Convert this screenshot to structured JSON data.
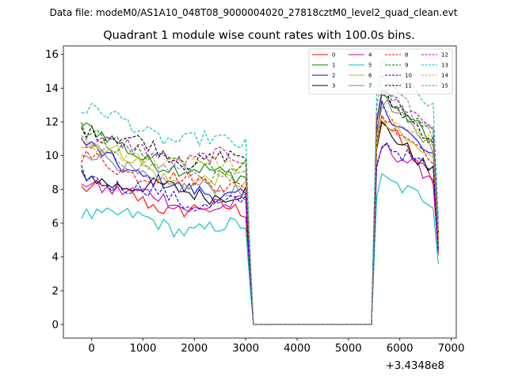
{
  "chart_data": {
    "type": "line",
    "suptitle": "Data file: modeM0/AS1A10_048T08_9000004020_27818cztM0_level2_quad_clean.evt",
    "title": "Quadrant 1 module wise count rates with 100.0s bins.",
    "xlabel": "",
    "ylabel": "",
    "x_offset_label": "+3.4348e8",
    "xlim": [
      -550,
      7100
    ],
    "ylim": [
      -0.8,
      16.5
    ],
    "xticks": [
      0,
      1000,
      2000,
      3000,
      4000,
      5000,
      6000,
      7000
    ],
    "xtick_labels": [
      "0",
      "1000",
      "2000",
      "3000",
      "4000",
      "5000",
      "6000",
      "7000"
    ],
    "yticks": [
      0,
      2,
      4,
      6,
      8,
      10,
      12,
      14,
      16
    ],
    "ytick_labels": [
      "0",
      "2",
      "4",
      "6",
      "8",
      "10",
      "12",
      "14",
      "16"
    ],
    "grid": false,
    "legend_location": "top-right",
    "legend_columns": 4,
    "x_active_segment_1": [
      -200,
      3000
    ],
    "x_gap": [
      3150,
      5450
    ],
    "x_active_segment_2": [
      5550,
      6750
    ],
    "x_step": 100,
    "series": [
      {
        "name": "0",
        "color": "#ff0000",
        "dashed": false,
        "level_start": 8.2,
        "level_mid": 6.8,
        "peak_2": 12.2,
        "level_end": 8.3
      },
      {
        "name": "1",
        "color": "#008000",
        "dashed": false,
        "level_start": 11.6,
        "level_mid": 9.0,
        "peak_2": 13.6,
        "level_end": 10.8
      },
      {
        "name": "2",
        "color": "#0000ff",
        "dashed": false,
        "level_start": 10.6,
        "level_mid": 7.8,
        "peak_2": 12.9,
        "level_end": 9.6
      },
      {
        "name": "3",
        "color": "#000000",
        "dashed": false,
        "level_start": 8.8,
        "level_mid": 7.8,
        "peak_2": 11.8,
        "level_end": 8.8
      },
      {
        "name": "4",
        "color": "#bf00bf",
        "dashed": false,
        "level_start": 8.6,
        "level_mid": 7.0,
        "peak_2": 10.6,
        "level_end": 8.6
      },
      {
        "name": "5",
        "color": "#00bfbf",
        "dashed": false,
        "level_start": 6.8,
        "level_mid": 5.7,
        "peak_2": 8.6,
        "level_end": 7.2
      },
      {
        "name": "6",
        "color": "#bfbf00",
        "dashed": false,
        "level_start": 10.9,
        "level_mid": 8.4,
        "peak_2": 12.0,
        "level_end": 9.6
      },
      {
        "name": "7",
        "color": "#808080",
        "dashed": false,
        "level_start": 10.2,
        "level_mid": 8.0,
        "peak_2": 13.2,
        "level_end": 10.4
      },
      {
        "name": "8",
        "color": "#ff0000",
        "dashed": true,
        "level_start": 9.8,
        "level_mid": 8.4,
        "peak_2": 12.4,
        "level_end": 9.8
      },
      {
        "name": "9",
        "color": "#008000",
        "dashed": true,
        "level_start": 11.4,
        "level_mid": 9.4,
        "peak_2": 13.8,
        "level_end": 11.0
      },
      {
        "name": "10",
        "color": "#0000ff",
        "dashed": true,
        "level_start": 9.0,
        "level_mid": 7.2,
        "peak_2": 10.8,
        "level_end": 9.0
      },
      {
        "name": "11",
        "color": "#000000",
        "dashed": true,
        "level_start": 11.8,
        "level_mid": 9.8,
        "peak_2": 13.6,
        "level_end": 10.8
      },
      {
        "name": "12",
        "color": "#bf00bf",
        "dashed": true,
        "level_start": 11.0,
        "level_mid": 9.8,
        "peak_2": 13.8,
        "level_end": 11.6
      },
      {
        "name": "13",
        "color": "#00bfbf",
        "dashed": true,
        "level_start": 12.8,
        "level_mid": 10.8,
        "peak_2": 15.5,
        "level_end": 12.6
      },
      {
        "name": "14",
        "color": "#bfbf00",
        "dashed": true,
        "level_start": 10.4,
        "level_mid": 9.6,
        "peak_2": 12.6,
        "level_end": 10.6
      },
      {
        "name": "15",
        "color": "#808080",
        "dashed": true,
        "level_start": 10.6,
        "level_mid": 8.8,
        "peak_2": 14.6,
        "level_end": 11.2
      }
    ]
  }
}
